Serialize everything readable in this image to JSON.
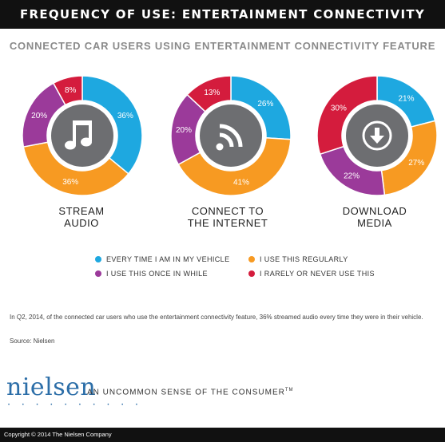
{
  "header": {
    "title": "FREQUENCY OF USE: ENTERTAINMENT CONNECTIVITY FEATURE"
  },
  "subtitle": "CONNECTED CAR USERS USING ENTERTAINMENT CONNECTIVITY FEATURE",
  "chart_data": {
    "type": "pie",
    "variant": "donut",
    "categories": [
      "EVERY TIME I AM IN MY VEHICLE",
      "I USE THIS REGULARLY",
      "I USE THIS ONCE IN WHILE",
      "I RARELY OR NEVER USE THIS"
    ],
    "colors": [
      "#1ea8e0",
      "#f79a22",
      "#9b3a9a",
      "#d41c3d"
    ],
    "charts": [
      {
        "label_line1": "STREAM",
        "label_line2": "AUDIO",
        "icon": "music-note-icon",
        "values": [
          36,
          36,
          20,
          8
        ],
        "labels": [
          "36%",
          "36%",
          "20%",
          "8%"
        ]
      },
      {
        "label_line1": "CONNECT TO",
        "label_line2": "THE INTERNET",
        "icon": "rss-feed-icon",
        "values": [
          26,
          41,
          20,
          13
        ],
        "labels": [
          "26%",
          "41%",
          "20%",
          "13%"
        ]
      },
      {
        "label_line1": "DOWNLOAD",
        "label_line2": "MEDIA",
        "icon": "download-icon",
        "values": [
          21,
          27,
          22,
          30
        ],
        "labels": [
          "21%",
          "27%",
          "22%",
          "30%"
        ]
      }
    ],
    "legend_placement": "bottom"
  },
  "note": "In Q2, 2014, of the connected car users who use the entertainment connectivity feature, 36% streamed audio every time they were in their vehicle.",
  "source": "Source: Nielsen",
  "logo": "nielsen",
  "logo_dots": "• • • • • • • • • •",
  "tagline": "AN UNCOMMON SENSE OF THE CONSUMER",
  "tagline_mark": "TM",
  "footer": "Copyright © 2014 The Nielsen Company"
}
